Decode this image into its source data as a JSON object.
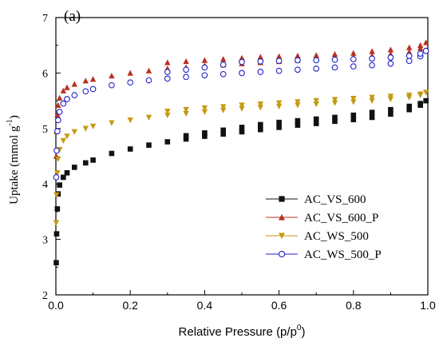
{
  "chart_data": {
    "type": "scatter",
    "panel_label": "(a)",
    "xlabel": "Relative Pressure (p/p",
    "xlabel_sup": "0",
    "xlabel_tail": ")",
    "ylabel": "Uptake (mmol g",
    "ylabel_sup": "-1",
    "ylabel_tail": ")",
    "xlim": [
      0,
      1
    ],
    "ylim": [
      2,
      7
    ],
    "xticks": [
      0.0,
      0.2,
      0.4,
      0.6,
      0.8,
      1.0
    ],
    "xtick_labels": [
      "0.0",
      "0.2",
      "0.4",
      "0.6",
      "0.8",
      "1.0"
    ],
    "yticks": [
      2,
      3,
      4,
      5,
      6,
      7
    ],
    "ytick_labels": [
      "2",
      "3",
      "4",
      "5",
      "6",
      "7"
    ],
    "legend_position": "center-right",
    "grid": false,
    "series": [
      {
        "name": "AC_VS_600",
        "color": "#111111",
        "marker": "square",
        "x": [
          0.001,
          0.002,
          0.004,
          0.006,
          0.01,
          0.02,
          0.03,
          0.05,
          0.08,
          0.1,
          0.15,
          0.2,
          0.25,
          0.3,
          0.35,
          0.4,
          0.45,
          0.5,
          0.55,
          0.6,
          0.65,
          0.7,
          0.75,
          0.8,
          0.85,
          0.9,
          0.95,
          0.98,
          0.995
        ],
        "y": [
          2.58,
          3.1,
          3.55,
          3.82,
          3.98,
          4.12,
          4.2,
          4.3,
          4.38,
          4.43,
          4.55,
          4.63,
          4.7,
          4.76,
          4.81,
          4.86,
          4.9,
          4.94,
          4.98,
          5.02,
          5.06,
          5.09,
          5.13,
          5.16,
          5.2,
          5.26,
          5.34,
          5.42,
          5.5
        ],
        "desorption_x": [
          0.98,
          0.95,
          0.9,
          0.85,
          0.8,
          0.75,
          0.7,
          0.65,
          0.6,
          0.55,
          0.5,
          0.45,
          0.4,
          0.35
        ],
        "desorption_y": [
          5.45,
          5.4,
          5.34,
          5.29,
          5.24,
          5.2,
          5.17,
          5.14,
          5.11,
          5.07,
          5.02,
          4.97,
          4.92,
          4.87
        ]
      },
      {
        "name": "AC_VS_600_P",
        "color": "#b8311f",
        "marker": "triangle-up",
        "x": [
          0.001,
          0.002,
          0.004,
          0.006,
          0.01,
          0.02,
          0.03,
          0.05,
          0.08,
          0.1,
          0.15,
          0.2,
          0.25,
          0.3,
          0.35,
          0.4,
          0.45,
          0.5,
          0.55,
          0.6,
          0.65,
          0.7,
          0.75,
          0.8,
          0.85,
          0.9,
          0.95,
          0.98,
          0.995
        ],
        "y": [
          4.5,
          4.95,
          5.25,
          5.42,
          5.55,
          5.68,
          5.74,
          5.8,
          5.86,
          5.89,
          5.95,
          6.0,
          6.04,
          6.08,
          6.1,
          6.13,
          6.15,
          6.17,
          6.19,
          6.21,
          6.23,
          6.25,
          6.27,
          6.29,
          6.31,
          6.34,
          6.38,
          6.45,
          6.55
        ],
        "desorption_x": [
          0.98,
          0.95,
          0.9,
          0.85,
          0.8,
          0.75,
          0.7,
          0.65,
          0.6,
          0.55,
          0.5,
          0.45,
          0.4,
          0.35,
          0.3
        ],
        "desorption_y": [
          6.5,
          6.46,
          6.42,
          6.39,
          6.36,
          6.34,
          6.32,
          6.31,
          6.3,
          6.29,
          6.27,
          6.25,
          6.23,
          6.21,
          6.19
        ]
      },
      {
        "name": "AC_WS_500",
        "color": "#c49a12",
        "marker": "triangle-down",
        "x": [
          0.001,
          0.002,
          0.004,
          0.006,
          0.01,
          0.02,
          0.03,
          0.05,
          0.08,
          0.1,
          0.15,
          0.2,
          0.25,
          0.3,
          0.35,
          0.4,
          0.45,
          0.5,
          0.55,
          0.6,
          0.65,
          0.7,
          0.75,
          0.8,
          0.85,
          0.9,
          0.95,
          0.98,
          0.995
        ],
        "y": [
          3.3,
          3.8,
          4.2,
          4.45,
          4.62,
          4.78,
          4.86,
          4.94,
          5.0,
          5.04,
          5.1,
          5.15,
          5.2,
          5.24,
          5.27,
          5.3,
          5.33,
          5.36,
          5.38,
          5.4,
          5.42,
          5.44,
          5.46,
          5.48,
          5.5,
          5.53,
          5.56,
          5.6,
          5.65
        ],
        "desorption_x": [
          0.98,
          0.95,
          0.9,
          0.85,
          0.8,
          0.75,
          0.7,
          0.65,
          0.6,
          0.55,
          0.5,
          0.45,
          0.4,
          0.35,
          0.3
        ],
        "desorption_y": [
          5.62,
          5.6,
          5.58,
          5.56,
          5.54,
          5.52,
          5.5,
          5.48,
          5.46,
          5.44,
          5.42,
          5.39,
          5.37,
          5.34,
          5.31
        ]
      },
      {
        "name": "AC_WS_500_P",
        "color": "#2020c8",
        "marker": "circle-open",
        "x": [
          0.001,
          0.002,
          0.004,
          0.006,
          0.01,
          0.02,
          0.03,
          0.05,
          0.08,
          0.1,
          0.15,
          0.2,
          0.25,
          0.3,
          0.35,
          0.4,
          0.45,
          0.5,
          0.55,
          0.6,
          0.65,
          0.7,
          0.75,
          0.8,
          0.85,
          0.9,
          0.95,
          0.98,
          0.995
        ],
        "y": [
          4.12,
          4.6,
          4.95,
          5.15,
          5.3,
          5.45,
          5.53,
          5.6,
          5.67,
          5.71,
          5.78,
          5.83,
          5.87,
          5.9,
          5.93,
          5.96,
          5.98,
          6.0,
          6.02,
          6.04,
          6.06,
          6.08,
          6.1,
          6.12,
          6.14,
          6.17,
          6.22,
          6.3,
          6.4
        ],
        "desorption_x": [
          0.98,
          0.95,
          0.9,
          0.85,
          0.8,
          0.75,
          0.7,
          0.65,
          0.6,
          0.55,
          0.5,
          0.45,
          0.4,
          0.35,
          0.3
        ],
        "desorption_y": [
          6.35,
          6.31,
          6.28,
          6.26,
          6.25,
          6.24,
          6.23,
          6.23,
          6.22,
          6.21,
          6.2,
          6.15,
          6.1,
          6.06,
          6.02
        ]
      }
    ]
  }
}
